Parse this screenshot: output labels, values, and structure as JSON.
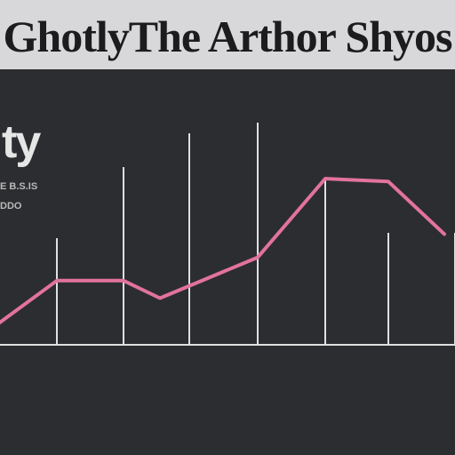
{
  "header": {
    "title": "GhotlyThe Arthor Shyos",
    "subtitle": "ty",
    "ylabels": [
      "E B.S.IS",
      "DDO"
    ]
  },
  "chart_data": {
    "type": "line",
    "title": "GhotlyThe Arthor Shyos",
    "xlabel": "",
    "ylabel": "",
    "x": [
      0,
      1,
      2,
      3,
      4,
      5,
      6,
      7
    ],
    "series": [
      {
        "values": [
          5,
          22,
          22,
          16,
          30,
          57,
          56,
          38
        ]
      }
    ],
    "tick_labels": [
      "",
      "",
      "",
      "",
      "",
      "",
      "",
      ""
    ],
    "x_titles": [
      "",
      "",
      ""
    ],
    "ylim": [
      0,
      100
    ],
    "grid": "vertical",
    "line_color": "#e2739c",
    "axis_color": "#e0e0e0"
  }
}
